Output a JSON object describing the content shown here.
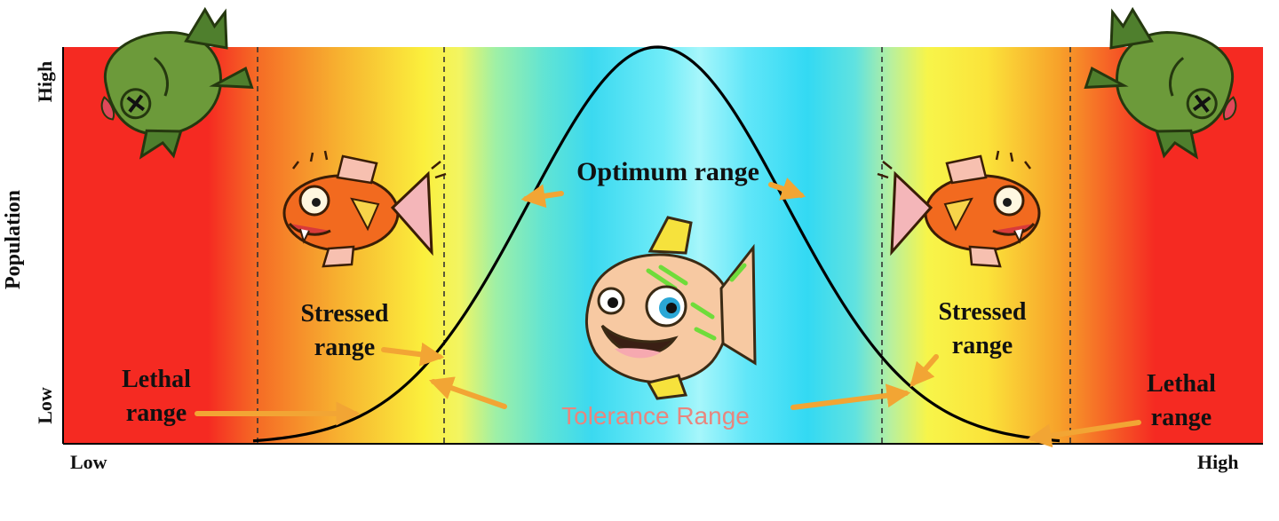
{
  "axes": {
    "y_title": "Population",
    "y_high": "High",
    "y_low": "Low",
    "x_low": "Low",
    "x_high": "High"
  },
  "zones": {
    "optimum": "Optimum range",
    "stressed_left_line1": "Stressed",
    "stressed_left_line2": "range",
    "stressed_right_line1": "Stressed",
    "stressed_right_line2": "range",
    "lethal_left_line1": "Lethal",
    "lethal_left_line2": "range",
    "lethal_right_line1": "Lethal",
    "lethal_right_line2": "range",
    "tolerance": "Tolerance Range"
  },
  "colors": {
    "lethal": "#f52a22",
    "stressed_orange": "#f7a12a",
    "stressed_yellow": "#fbef3c",
    "optimum": "#32dcf5",
    "curve": "#000000",
    "arrow": "#f2a534",
    "tolerance_text": "#e8867e"
  },
  "icons": {
    "dead_fish": "dead-fish-icon",
    "stressed_fish": "stressed-fish-icon",
    "happy_fish": "happy-fish-icon"
  }
}
